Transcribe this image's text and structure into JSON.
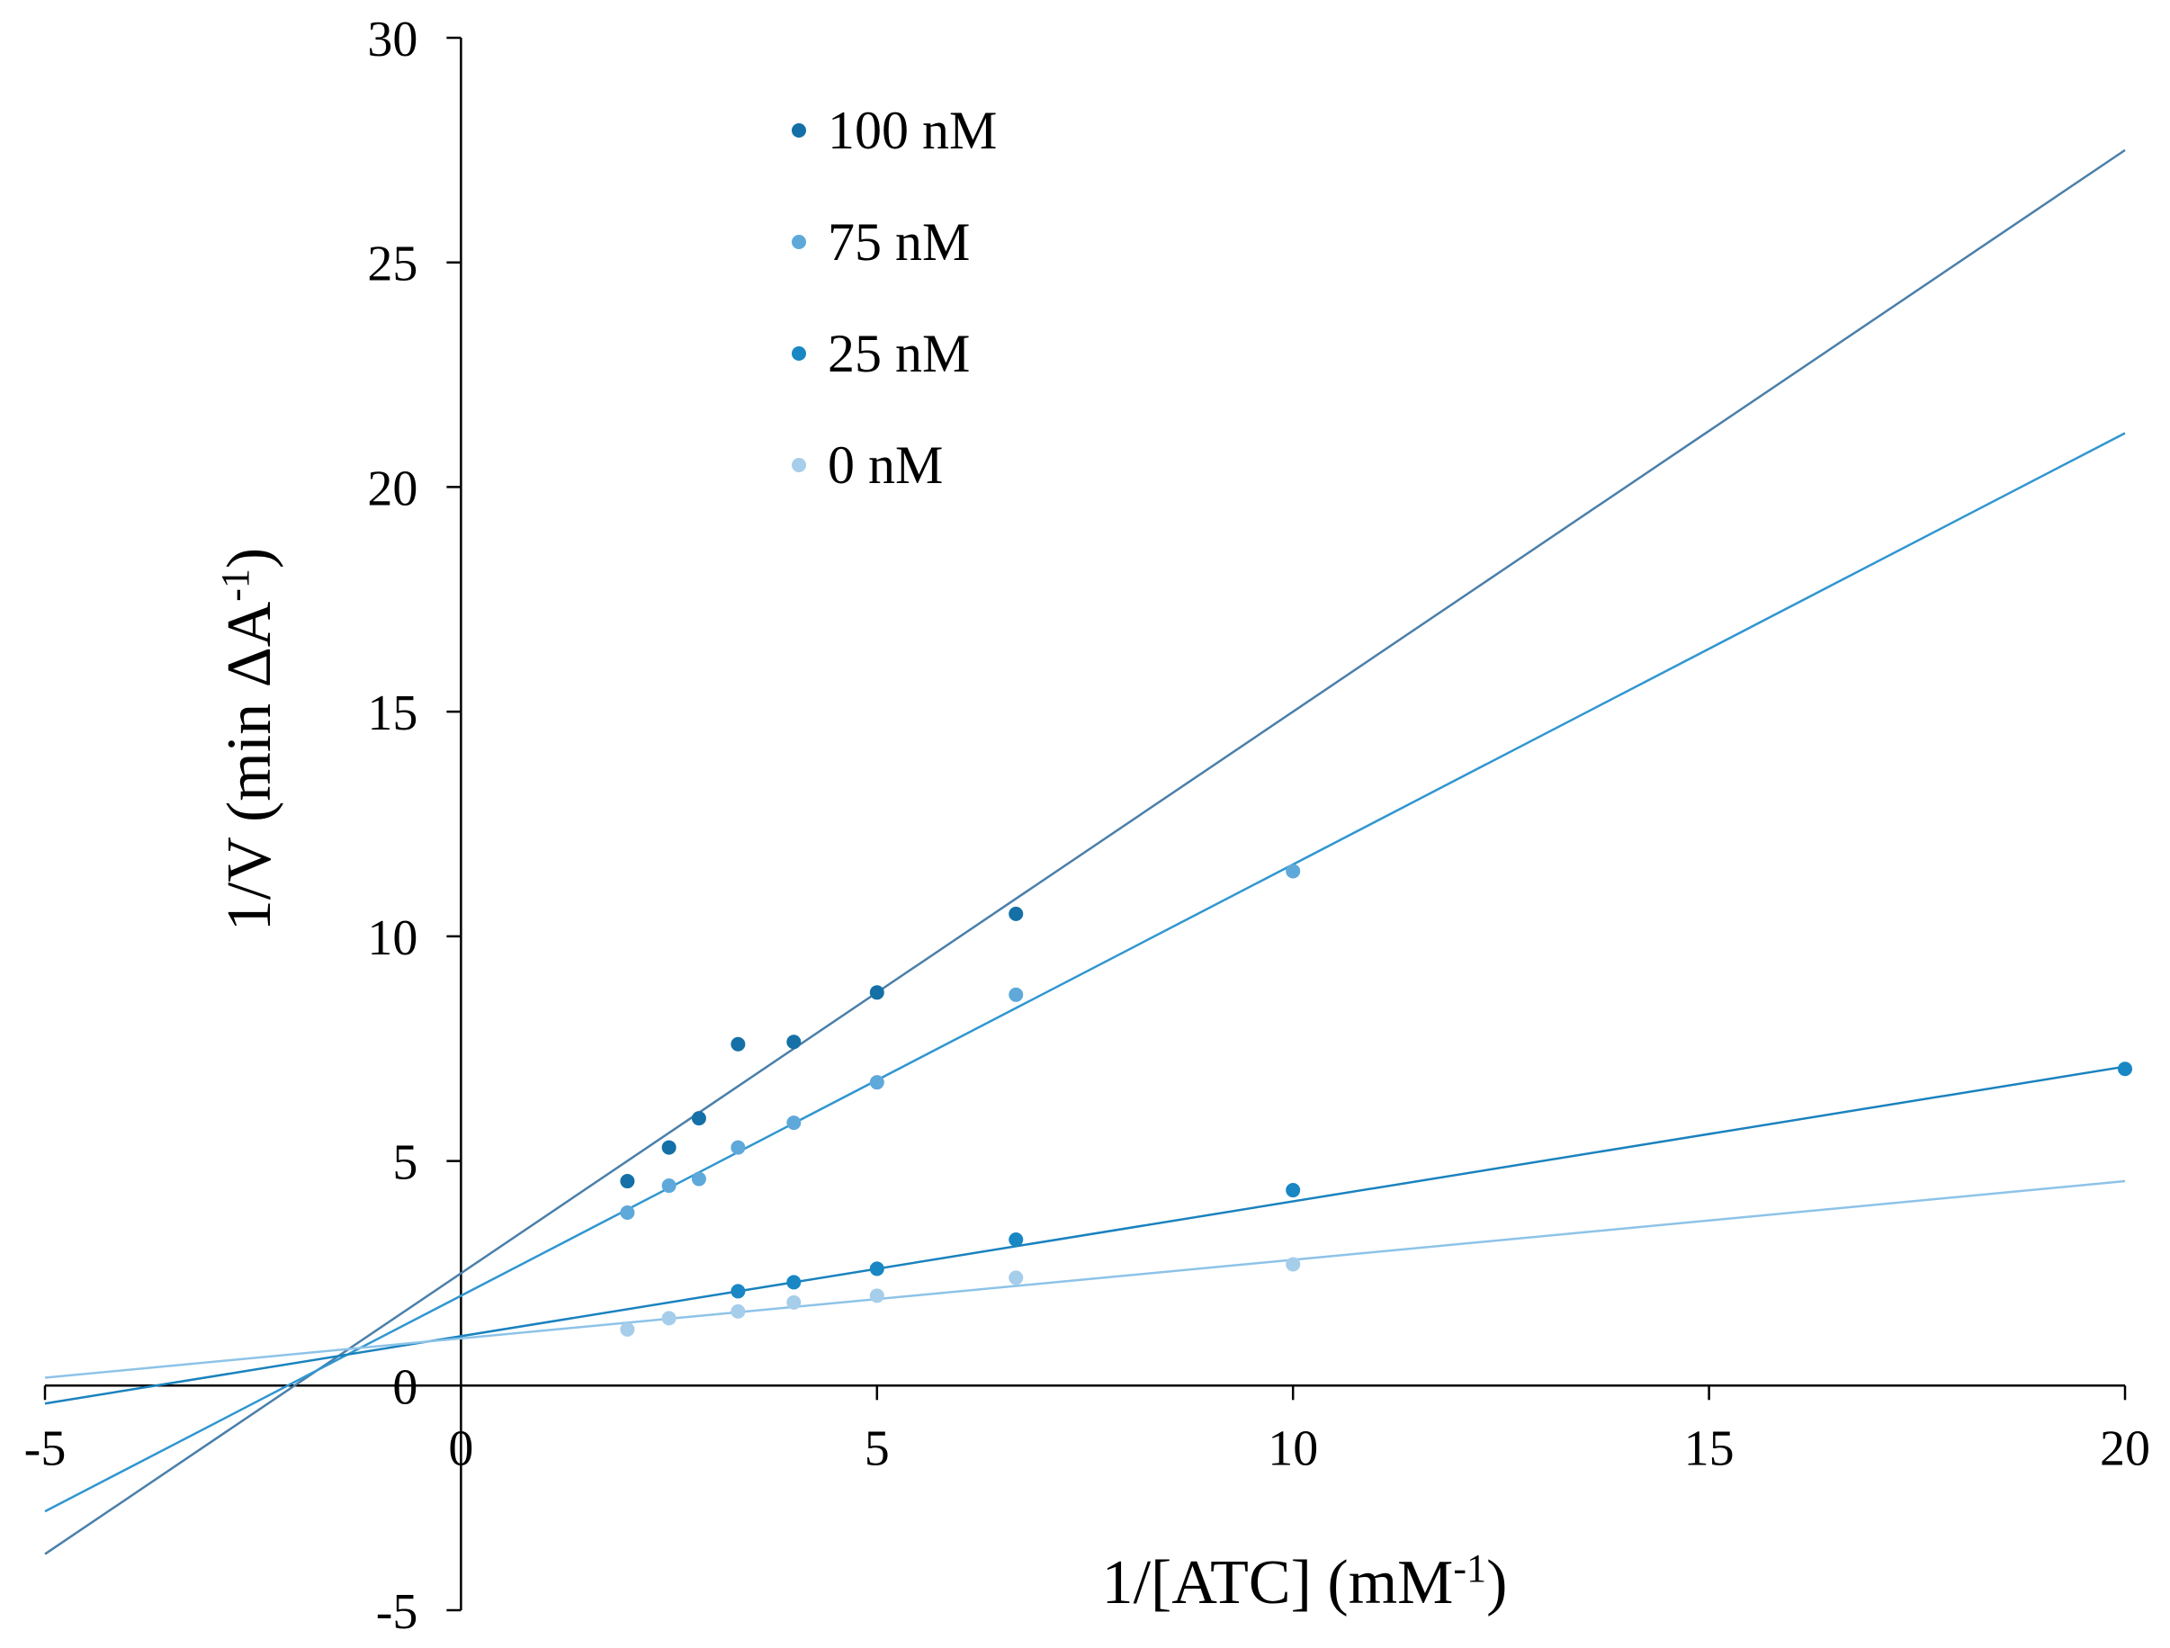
{
  "chart_data": {
    "type": "scatter",
    "title": "",
    "xlabel": "1/[ATC] (mM",
    "xlabel_sup": "-1",
    "xlabel_end": ")",
    "ylabel": "1/V (min ΔA",
    "ylabel_sup": "-1",
    "ylabel_end": ")",
    "xlim": [
      -5,
      20
    ],
    "ylim": [
      -5,
      30
    ],
    "xticks": [
      -5,
      0,
      5,
      10,
      15,
      20
    ],
    "yticks": [
      -5,
      0,
      5,
      10,
      15,
      20,
      25,
      30
    ],
    "xtick_labels": [
      "-5",
      "0",
      "5",
      "10",
      "15",
      "20"
    ],
    "ytick_labels": [
      "-5",
      "0",
      "5",
      "10",
      "15",
      "20",
      "25",
      "30"
    ],
    "grid": false,
    "legend_position": "top-left",
    "series": [
      {
        "name": "100 nM",
        "color": "#1470A6",
        "line_color": "#4A7FAA",
        "x": [
          2.0,
          2.5,
          2.86,
          3.33,
          4.0,
          5.0,
          6.67
        ],
        "y": [
          4.55,
          5.3,
          5.95,
          7.6,
          7.65,
          8.75,
          10.5
        ],
        "fit": {
          "slope": 1.25,
          "intercept": 2.5
        }
      },
      {
        "name": "75 nM",
        "color": "#5FA8DA",
        "line_color": "#3096D0",
        "x": [
          2.0,
          2.5,
          2.86,
          3.33,
          4.0,
          5.0,
          6.67,
          10.0
        ],
        "y": [
          3.85,
          4.45,
          4.6,
          5.3,
          5.85,
          6.75,
          8.7,
          11.45
        ],
        "fit": {
          "slope": 0.96,
          "intercept": 2.0
        }
      },
      {
        "name": "25 nM",
        "color": "#1887C4",
        "line_color": "#1A82BE",
        "x": [
          3.33,
          4.0,
          5.0,
          6.67,
          10.0,
          20.0
        ],
        "y": [
          2.1,
          2.3,
          2.6,
          3.25,
          4.35,
          7.05
        ],
        "fit": {
          "slope": 0.3,
          "intercept": 1.1
        }
      },
      {
        "name": "0 nM",
        "color": "#A6CDEA",
        "line_color": "#8DC3E8",
        "x": [
          2.0,
          2.5,
          3.33,
          4.0,
          5.0,
          6.67,
          10.0
        ],
        "y": [
          1.25,
          1.5,
          1.65,
          1.85,
          2.0,
          2.4,
          2.7
        ],
        "fit": {
          "slope": 0.175,
          "intercept": 1.05
        }
      }
    ]
  }
}
